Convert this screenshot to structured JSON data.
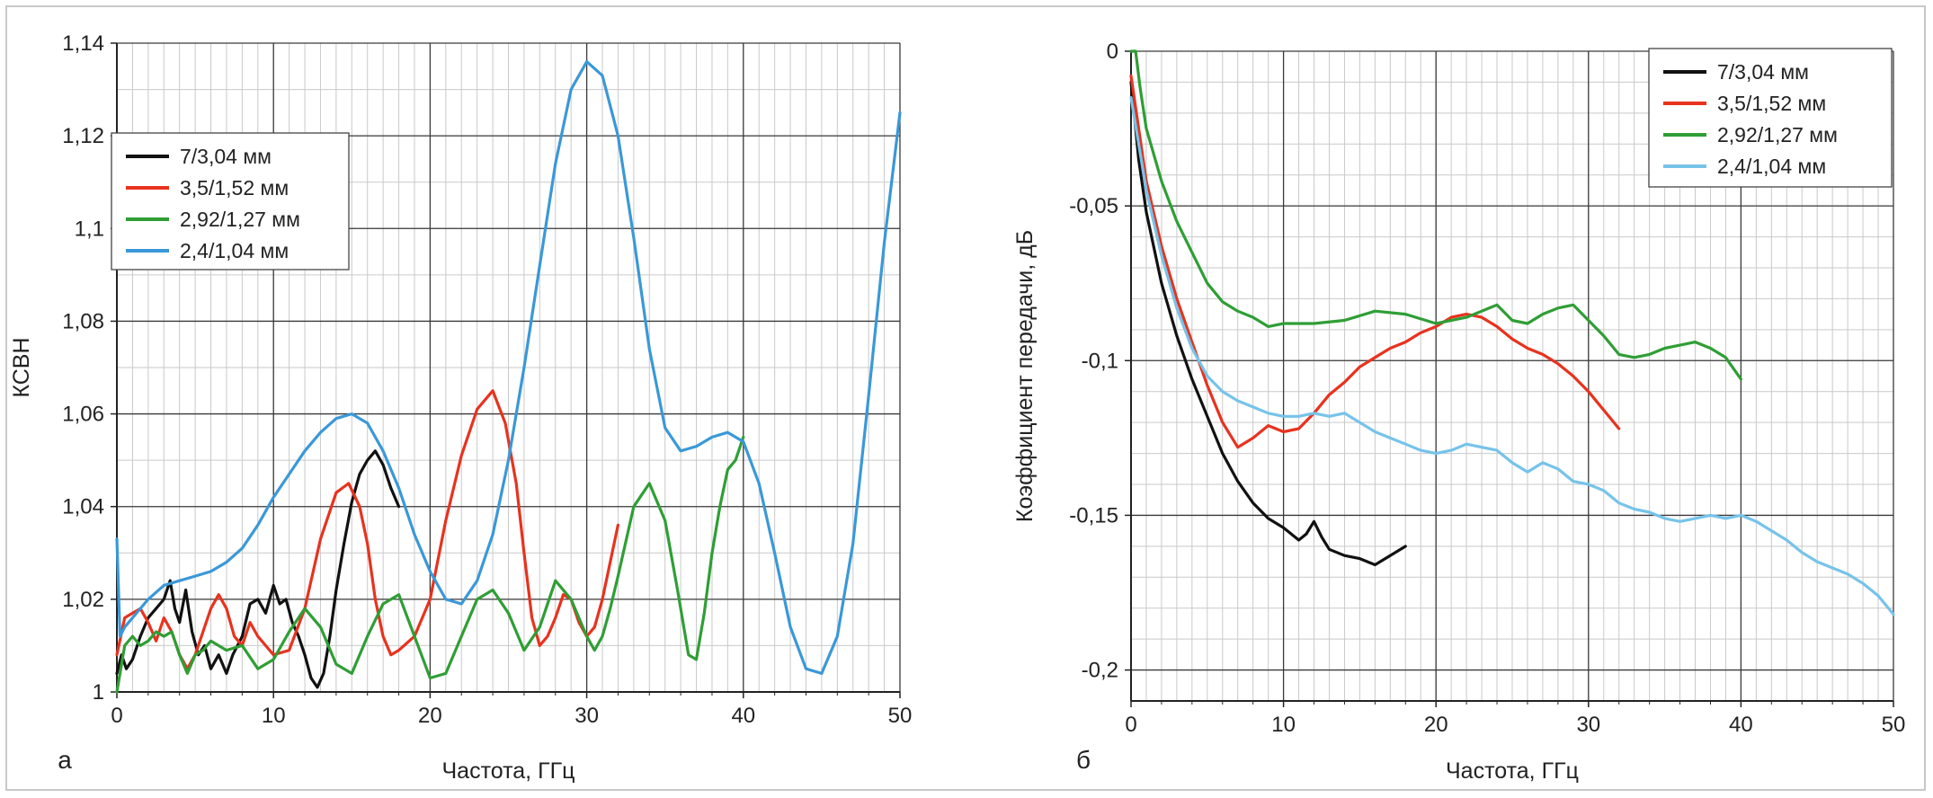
{
  "colors": {
    "black": "#111111",
    "red": "#e8321e",
    "green": "#2f9e35",
    "blue": "#3a98d8",
    "lightblue": "#76c3ea"
  },
  "chart_data": [
    {
      "type": "line",
      "panel_label": "а",
      "xlabel": "Частота, ГГц",
      "ylabel": "КСВН",
      "xlim": [
        0,
        50
      ],
      "ylim": [
        1,
        1.14
      ],
      "xticks": [
        "0",
        "10",
        "20",
        "30",
        "40",
        "50"
      ],
      "yticks": [
        "1",
        "1,02",
        "1,04",
        "1,06",
        "1,08",
        "1,1",
        "1,12",
        "1,14"
      ],
      "grid": true,
      "legend_position": "top-left",
      "series": [
        {
          "name": "7/3,04 мм",
          "color": "#111111",
          "x": [
            0,
            0.3,
            0.6,
            1,
            1.5,
            2,
            2.5,
            3,
            3.4,
            3.7,
            4,
            4.4,
            4.8,
            5.2,
            5.6,
            6,
            6.5,
            7,
            7.4,
            8,
            8.5,
            9,
            9.5,
            10,
            10.4,
            10.8,
            11.2,
            11.6,
            12,
            12.4,
            12.8,
            13.2,
            13.6,
            14,
            14.5,
            15,
            15.5,
            16,
            16.5,
            17,
            17.5,
            18
          ],
          "y": [
            1.004,
            1.008,
            1.005,
            1.007,
            1.012,
            1.016,
            1.018,
            1.02,
            1.024,
            1.018,
            1.015,
            1.022,
            1.013,
            1.008,
            1.01,
            1.005,
            1.008,
            1.004,
            1.008,
            1.012,
            1.019,
            1.02,
            1.017,
            1.023,
            1.019,
            1.02,
            1.015,
            1.012,
            1.008,
            1.003,
            1.001,
            1.004,
            1.012,
            1.022,
            1.032,
            1.041,
            1.047,
            1.05,
            1.052,
            1.049,
            1.044,
            1.04
          ]
        },
        {
          "name": "3,5/1,52 мм",
          "color": "#e8321e",
          "x": [
            0,
            0.5,
            1,
            1.5,
            2,
            2.5,
            3,
            3.5,
            4,
            4.5,
            5,
            5.5,
            6,
            6.5,
            7,
            7.5,
            8,
            8.5,
            9,
            9.5,
            10,
            11,
            12,
            13,
            14,
            14.8,
            15.5,
            16,
            16.5,
            17,
            17.5,
            18,
            19,
            20,
            21,
            22,
            23,
            24,
            24.8,
            25.5,
            26,
            26.5,
            27,
            27.5,
            28,
            28.5,
            29,
            29.5,
            30,
            30.5,
            31,
            31.5,
            32
          ],
          "y": [
            1.008,
            1.016,
            1.017,
            1.018,
            1.015,
            1.011,
            1.016,
            1.013,
            1.008,
            1.005,
            1.008,
            1.013,
            1.018,
            1.021,
            1.018,
            1.012,
            1.01,
            1.015,
            1.012,
            1.01,
            1.008,
            1.009,
            1.018,
            1.033,
            1.043,
            1.045,
            1.04,
            1.032,
            1.02,
            1.012,
            1.008,
            1.009,
            1.012,
            1.02,
            1.037,
            1.051,
            1.061,
            1.065,
            1.058,
            1.045,
            1.03,
            1.016,
            1.01,
            1.012,
            1.016,
            1.021,
            1.02,
            1.015,
            1.012,
            1.014,
            1.02,
            1.028,
            1.036
          ]
        },
        {
          "name": "2,92/1,27 мм",
          "color": "#2f9e35",
          "x": [
            0,
            0.5,
            1,
            1.5,
            2,
            2.5,
            3,
            3.5,
            4,
            4.5,
            5,
            5.5,
            6,
            7,
            8,
            9,
            10,
            11,
            12,
            13,
            14,
            15,
            16,
            17,
            18,
            19,
            20,
            21,
            22,
            23,
            24,
            25,
            26,
            27,
            28,
            29,
            30,
            30.5,
            31,
            31.5,
            32,
            33,
            34,
            35,
            35.8,
            36.5,
            37,
            37.5,
            38,
            38.5,
            39,
            39.5,
            40
          ],
          "y": [
            1.0,
            1.01,
            1.012,
            1.01,
            1.011,
            1.013,
            1.012,
            1.013,
            1.008,
            1.004,
            1.008,
            1.009,
            1.011,
            1.009,
            1.01,
            1.005,
            1.007,
            1.013,
            1.018,
            1.014,
            1.006,
            1.004,
            1.012,
            1.019,
            1.021,
            1.012,
            1.003,
            1.004,
            1.012,
            1.02,
            1.022,
            1.017,
            1.009,
            1.014,
            1.024,
            1.02,
            1.012,
            1.009,
            1.012,
            1.018,
            1.025,
            1.04,
            1.045,
            1.037,
            1.022,
            1.008,
            1.007,
            1.017,
            1.03,
            1.04,
            1.048,
            1.05,
            1.055
          ]
        },
        {
          "name": "2,4/1,04 мм",
          "color": "#3a98d8",
          "x": [
            0,
            0.2,
            0.5,
            1,
            2,
            3,
            4,
            5,
            6,
            7,
            8,
            9,
            10,
            11,
            12,
            13,
            14,
            15,
            16,
            17,
            18,
            19,
            20,
            21,
            22,
            23,
            24,
            25,
            26,
            27,
            28,
            29,
            30,
            31,
            32,
            33,
            34,
            35,
            36,
            37,
            38,
            39,
            40,
            41,
            42,
            43,
            44,
            45,
            46,
            47,
            48,
            49,
            50
          ],
          "y": [
            1.033,
            1.012,
            1.014,
            1.016,
            1.02,
            1.023,
            1.024,
            1.025,
            1.026,
            1.028,
            1.031,
            1.036,
            1.042,
            1.047,
            1.052,
            1.056,
            1.059,
            1.06,
            1.058,
            1.052,
            1.044,
            1.034,
            1.026,
            1.02,
            1.019,
            1.024,
            1.034,
            1.05,
            1.07,
            1.092,
            1.114,
            1.13,
            1.136,
            1.133,
            1.12,
            1.098,
            1.074,
            1.057,
            1.052,
            1.053,
            1.055,
            1.056,
            1.054,
            1.045,
            1.03,
            1.014,
            1.005,
            1.004,
            1.012,
            1.032,
            1.064,
            1.097,
            1.125
          ]
        }
      ]
    },
    {
      "type": "line",
      "panel_label": "б",
      "xlabel": "Частота, ГГц",
      "ylabel": "Коэффициент передачи, дБ",
      "xlim": [
        0,
        50
      ],
      "ylim": [
        -0.21,
        0
      ],
      "xticks": [
        "0",
        "10",
        "20",
        "30",
        "40",
        "50"
      ],
      "yticks": [
        "0",
        "-0,05",
        "-0,1",
        "-0,15",
        "-0,2"
      ],
      "grid": true,
      "legend_position": "top-right",
      "series": [
        {
          "name": "7/3,04 мм",
          "color": "#111111",
          "x": [
            0,
            0.5,
            1,
            2,
            3,
            4,
            5,
            6,
            7,
            8,
            9,
            10,
            11,
            11.5,
            12,
            12.5,
            13,
            14,
            15,
            16,
            17,
            18
          ],
          "y": [
            -0.01,
            -0.035,
            -0.052,
            -0.075,
            -0.092,
            -0.106,
            -0.118,
            -0.13,
            -0.139,
            -0.146,
            -0.151,
            -0.154,
            -0.158,
            -0.156,
            -0.152,
            -0.157,
            -0.161,
            -0.163,
            -0.164,
            -0.166,
            -0.163,
            -0.16
          ]
        },
        {
          "name": "3,5/1,52 мм",
          "color": "#e8321e",
          "x": [
            0,
            0.5,
            1,
            2,
            3,
            4,
            5,
            6,
            7,
            8,
            9,
            10,
            11,
            12,
            13,
            14,
            15,
            16,
            17,
            18,
            19,
            20,
            21,
            22,
            23,
            24,
            25,
            26,
            27,
            28,
            29,
            30,
            31,
            32
          ],
          "y": [
            -0.008,
            -0.025,
            -0.042,
            -0.063,
            -0.08,
            -0.094,
            -0.108,
            -0.12,
            -0.128,
            -0.125,
            -0.121,
            -0.123,
            -0.122,
            -0.117,
            -0.111,
            -0.107,
            -0.102,
            -0.099,
            -0.096,
            -0.094,
            -0.091,
            -0.089,
            -0.086,
            -0.085,
            -0.086,
            -0.089,
            -0.093,
            -0.096,
            -0.098,
            -0.101,
            -0.105,
            -0.11,
            -0.116,
            -0.122
          ]
        },
        {
          "name": "2,92/1,27 мм",
          "color": "#2f9e35",
          "x": [
            0,
            0.3,
            0.6,
            1,
            2,
            3,
            4,
            5,
            6,
            7,
            8,
            9,
            10,
            12,
            14,
            16,
            18,
            20,
            22,
            23,
            24,
            25,
            26,
            27,
            28,
            29,
            30,
            31,
            32,
            33,
            34,
            35,
            36,
            37,
            38,
            39,
            40
          ],
          "y": [
            0,
            0,
            -0.012,
            -0.025,
            -0.042,
            -0.055,
            -0.065,
            -0.075,
            -0.081,
            -0.084,
            -0.086,
            -0.089,
            -0.088,
            -0.088,
            -0.087,
            -0.084,
            -0.085,
            -0.088,
            -0.086,
            -0.084,
            -0.082,
            -0.087,
            -0.088,
            -0.085,
            -0.083,
            -0.082,
            -0.087,
            -0.092,
            -0.098,
            -0.099,
            -0.098,
            -0.096,
            -0.095,
            -0.094,
            -0.096,
            -0.099,
            -0.106
          ]
        },
        {
          "name": "2,4/1,04 мм",
          "color": "#76c3ea",
          "x": [
            0,
            0.5,
            1,
            2,
            3,
            4,
            5,
            6,
            7,
            8,
            9,
            10,
            11,
            12,
            13,
            14,
            15,
            16,
            17,
            18,
            19,
            20,
            21,
            22,
            23,
            24,
            25,
            26,
            27,
            28,
            29,
            30,
            31,
            32,
            33,
            34,
            35,
            36,
            37,
            38,
            39,
            40,
            41,
            42,
            43,
            44,
            45,
            46,
            47,
            48,
            49,
            50
          ],
          "y": [
            -0.015,
            -0.03,
            -0.045,
            -0.066,
            -0.083,
            -0.096,
            -0.105,
            -0.11,
            -0.113,
            -0.115,
            -0.117,
            -0.118,
            -0.118,
            -0.117,
            -0.118,
            -0.117,
            -0.12,
            -0.123,
            -0.125,
            -0.127,
            -0.129,
            -0.13,
            -0.129,
            -0.127,
            -0.128,
            -0.129,
            -0.133,
            -0.136,
            -0.133,
            -0.135,
            -0.139,
            -0.14,
            -0.142,
            -0.146,
            -0.148,
            -0.149,
            -0.151,
            -0.152,
            -0.151,
            -0.15,
            -0.151,
            -0.15,
            -0.152,
            -0.155,
            -0.158,
            -0.162,
            -0.165,
            -0.167,
            -0.169,
            -0.172,
            -0.176,
            -0.182
          ]
        }
      ]
    }
  ]
}
